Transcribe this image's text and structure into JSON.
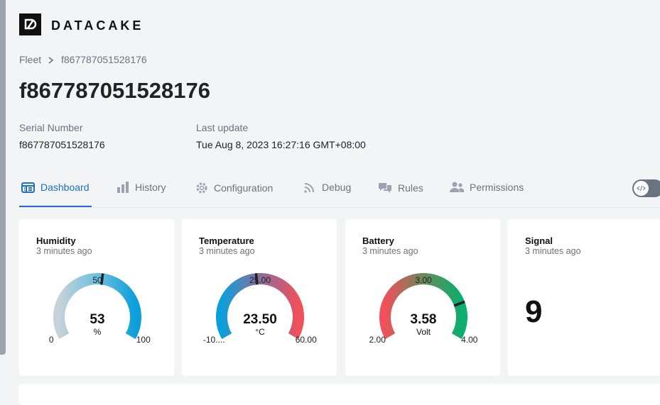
{
  "brand": "DATACAKE",
  "breadcrumb": [
    "Fleet",
    "f867787051528176"
  ],
  "title": "f867787051528176",
  "meta": [
    {
      "label": "Serial Number",
      "value": "f867787051528176"
    },
    {
      "label": "Last update",
      "value": "Tue Aug 8, 2023 16:27:16 GMT+08:00"
    }
  ],
  "tabs": [
    "Dashboard",
    "History",
    "Configuration",
    "Debug",
    "Rules",
    "Permissions"
  ],
  "widgets": [
    {
      "title": "Humidity",
      "subtitle": "3 minutes ago",
      "value": 53,
      "unit": "%",
      "min": 0,
      "mid": 50,
      "max": 100,
      "colors": [
        "#c7d2d8",
        "#6cc0e0",
        "#0b9fd9"
      ]
    },
    {
      "title": "Temperature",
      "subtitle": "3 minutes ago",
      "value": {
        "value": 23.5,
        "label": "23.50"
      },
      "unit": "°C",
      "min": {
        "value": -10,
        "label": "-10...."
      },
      "mid": {
        "value": 25,
        "label": "25.00"
      },
      "max": {
        "value": 60,
        "label": "60.00"
      },
      "colors": [
        "#0b9fd9",
        "#8a6fa0",
        "#f0505a"
      ]
    },
    {
      "title": "Battery",
      "subtitle": "3 minutes ago",
      "value": {
        "value": 3.58,
        "label": "3.58"
      },
      "unit": "Volt",
      "min": {
        "value": 2,
        "label": "2.00"
      },
      "mid": {
        "value": 3,
        "label": "3.00"
      },
      "max": {
        "value": 4,
        "label": "4.00"
      },
      "colors": [
        "#f0505a",
        "#6a8a5a",
        "#0aae6e"
      ]
    },
    {
      "title": "Signal",
      "subtitle": "3 minutes ago",
      "value": 9
    }
  ]
}
